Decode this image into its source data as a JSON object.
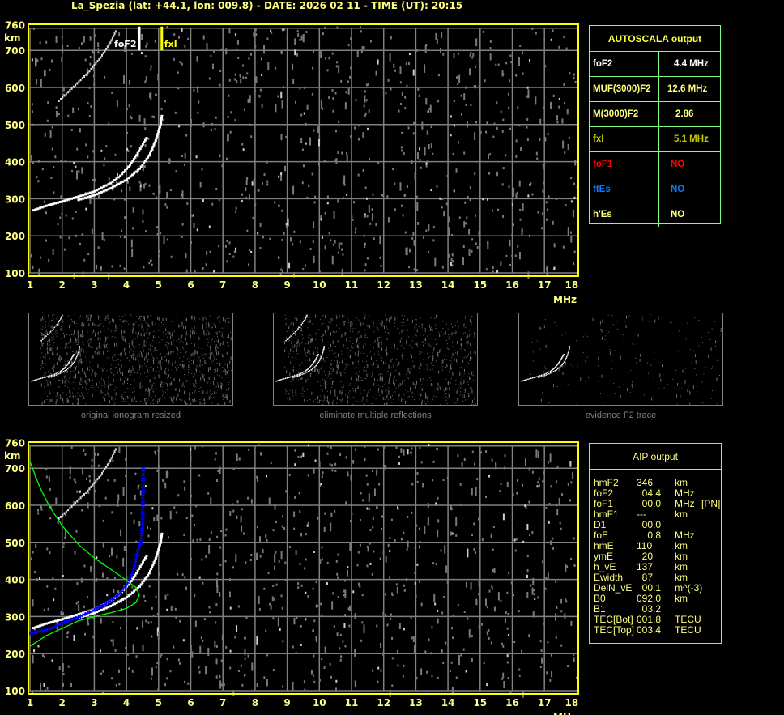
{
  "header": {
    "title": "La_Spezia (lat: +44.1, lon: 009.8) - DATE: 2026 02 11 - TIME (UT): 20:15"
  },
  "colors": {
    "axis": "#ffff80",
    "frame": "#ffff00",
    "grid": "#808080",
    "trace": "#ffffff",
    "model_profile": "#00ff00",
    "aip_points": "#0000ff",
    "table_border": "#80ff80"
  },
  "chart_data": [
    {
      "type": "scatter",
      "panel": "autoscala ionogram",
      "xlabel": "MHz",
      "ylabel": "km",
      "xlim": [
        1,
        18
      ],
      "ylim": [
        100,
        760
      ],
      "x_ticks": [
        "1",
        "2",
        "3",
        "4",
        "5",
        "6",
        "7",
        "8",
        "9",
        "10",
        "11",
        "12",
        "13",
        "14",
        "15",
        "16",
        "17",
        "18"
      ],
      "y_ticks": [
        "100",
        "200",
        "300",
        "400",
        "500",
        "600",
        "700",
        "760"
      ],
      "grid": true,
      "markers": [
        {
          "label": "foF2",
          "x": 4.4,
          "color": "#ffffff"
        },
        {
          "label": "fxI",
          "x": 5.1,
          "color": "#ffff00"
        }
      ],
      "series": [
        {
          "points": [
            [
              1.1,
              270
            ],
            [
              1.5,
              282
            ],
            [
              2,
              294
            ],
            [
              2.5,
              307
            ],
            [
              3,
              321
            ],
            [
              3.5,
              343
            ],
            [
              3.8,
              363
            ],
            [
              4.1,
              392
            ],
            [
              4.3,
              418
            ],
            [
              4.5,
              448
            ],
            [
              4.65,
              470
            ]
          ]
        },
        {
          "points": [
            [
              2.5,
              298
            ],
            [
              3,
              311
            ],
            [
              3.5,
              329
            ],
            [
              4,
              353
            ],
            [
              4.4,
              382
            ],
            [
              4.7,
              418
            ],
            [
              4.9,
              458
            ],
            [
              5.05,
              500
            ],
            [
              5.1,
              530
            ]
          ]
        },
        {
          "points": [
            [
              1.9,
              565
            ],
            [
              2.3,
              598
            ],
            [
              2.8,
              640
            ],
            [
              3.2,
              682
            ],
            [
              3.5,
              722
            ],
            [
              3.7,
              758
            ]
          ]
        }
      ]
    },
    {
      "type": "scatter",
      "panel": "AIP ionogram",
      "xlabel": "MHz",
      "ylabel": "km",
      "xlim": [
        1,
        18
      ],
      "ylim": [
        100,
        760
      ],
      "x_ticks": [
        "1",
        "2",
        "3",
        "4",
        "5",
        "6",
        "7",
        "8",
        "9",
        "10",
        "11",
        "12",
        "13",
        "14",
        "15",
        "16",
        "17",
        "18"
      ],
      "y_ticks": [
        "100",
        "200",
        "300",
        "400",
        "500",
        "600",
        "700",
        "760"
      ],
      "grid": true,
      "series": [
        {
          "points": [
            [
              1.1,
              270
            ],
            [
              1.5,
              282
            ],
            [
              2,
              294
            ],
            [
              2.5,
              307
            ],
            [
              3,
              321
            ],
            [
              3.5,
              343
            ],
            [
              3.8,
              363
            ],
            [
              4.1,
              392
            ],
            [
              4.3,
              418
            ],
            [
              4.5,
              448
            ],
            [
              4.65,
              470
            ]
          ]
        },
        {
          "points": [
            [
              2.5,
              298
            ],
            [
              3,
              311
            ],
            [
              3.5,
              329
            ],
            [
              4,
              353
            ],
            [
              4.4,
              382
            ],
            [
              4.7,
              418
            ],
            [
              4.9,
              458
            ],
            [
              5.05,
              500
            ],
            [
              5.1,
              530
            ]
          ]
        },
        {
          "points": [
            [
              1.9,
              565
            ],
            [
              2.3,
              598
            ],
            [
              2.8,
              640
            ],
            [
              3.2,
              682
            ],
            [
              3.5,
              722
            ],
            [
              3.7,
              758
            ]
          ]
        },
        {
          "role": "aip",
          "points": [
            [
              1,
              255
            ],
            [
              1.3,
              260
            ],
            [
              1.6,
              266
            ],
            [
              2,
              282
            ],
            [
              2.5,
              298
            ],
            [
              3,
              318
            ],
            [
              3.5,
              342
            ],
            [
              3.8,
              362
            ],
            [
              4,
              385
            ],
            [
              4.1,
              400
            ],
            [
              4.2,
              420
            ],
            [
              4.25,
              435
            ],
            [
              4.3,
              455
            ],
            [
              4.35,
              475
            ],
            [
              4.45,
              500
            ],
            [
              4.5,
              550
            ],
            [
              4.52,
              705
            ]
          ]
        },
        {
          "role": "model",
          "points": [
            [
              1,
              718
            ],
            [
              1.3,
              650
            ],
            [
              1.6,
              598
            ],
            [
              2,
              545
            ],
            [
              2.5,
              495
            ],
            [
              3,
              458
            ],
            [
              3.5,
              428
            ],
            [
              4,
              398
            ],
            [
              4.3,
              378
            ],
            [
              4.4,
              358
            ],
            [
              4.3,
              338
            ],
            [
              4,
              322
            ],
            [
              3.5,
              310
            ],
            [
              3,
              300
            ],
            [
              2.5,
              288
            ],
            [
              2,
              268
            ],
            [
              1.5,
              248
            ],
            [
              1,
              220
            ]
          ]
        }
      ]
    }
  ],
  "thumbnails": [
    {
      "caption": "original ionogram resized"
    },
    {
      "caption": "eliminate multiple reflections"
    },
    {
      "caption": "evidence F2 trace"
    }
  ],
  "autoscala": {
    "title": "AUTOSCALA output",
    "rows": [
      {
        "label": "foF2",
        "value": "4.4 MHz",
        "color": "#ffffff"
      },
      {
        "label": "MUF(3000)F2",
        "value": "12.6 MHz",
        "color": "#ffff80"
      },
      {
        "label": "M(3000)F2",
        "value": "2.86",
        "color": "#ffff80"
      },
      {
        "label": "fxI",
        "value": "5.1 MHz",
        "color": "#c8c800"
      },
      {
        "label": "foF1",
        "value": "NO",
        "color": "#ff0000"
      },
      {
        "label": "ftEs",
        "value": "NO",
        "color": "#0080ff"
      },
      {
        "label": "h'Es",
        "value": "NO",
        "color": "#ffff80"
      }
    ]
  },
  "aip": {
    "title": "AIP output",
    "rows": [
      {
        "name": "hmF2",
        "value": "346",
        "unit": "km",
        "extra": ""
      },
      {
        "name": "foF2",
        "value": "  04.4",
        "unit": "MHz",
        "extra": ""
      },
      {
        "name": "foF1",
        "value": "  00.0",
        "unit": "MHz",
        "extra": "[PN]"
      },
      {
        "name": "hmF1",
        "value": "---",
        "unit": "km",
        "extra": ""
      },
      {
        "name": "D1",
        "value": "  00.0",
        "unit": "",
        "extra": ""
      },
      {
        "name": "foE",
        "value": "    0.8",
        "unit": "MHz",
        "extra": ""
      },
      {
        "name": "hmE",
        "value": "110",
        "unit": "km",
        "extra": ""
      },
      {
        "name": "ymE",
        "value": "  20",
        "unit": "km",
        "extra": ""
      },
      {
        "name": "h_vE",
        "value": "137",
        "unit": "km",
        "extra": ""
      },
      {
        "name": "Ewidth",
        "value": "  87",
        "unit": "km",
        "extra": ""
      },
      {
        "name": "DelN_vE",
        "value": "  00.1",
        "unit": "m^(-3)",
        "extra": ""
      },
      {
        "name": "B0",
        "value": "092.0",
        "unit": "km",
        "extra": ""
      },
      {
        "name": "B1",
        "value": "  03.2",
        "unit": "",
        "extra": ""
      },
      {
        "name": "TEC[Bot]",
        "value": "001.8",
        "unit": "TECU",
        "extra": ""
      },
      {
        "name": "TEC[Top]",
        "value": "003.4",
        "unit": "TECU",
        "extra": ""
      }
    ]
  }
}
